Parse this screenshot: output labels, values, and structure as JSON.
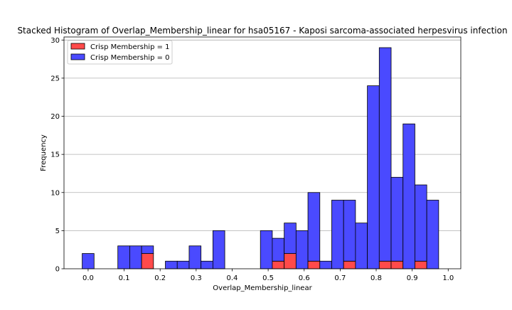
{
  "chart_data": {
    "type": "bar",
    "stacked": true,
    "title": "Stacked Histogram of Overlap_Membership_linear for hsa05167 - Kaposi sarcoma-associated herpesvirus infection",
    "xlabel": "Overlap_Membership_linear",
    "ylabel": "Frequency",
    "xlim": [
      -0.067,
      1.035
    ],
    "ylim": [
      0,
      30.4
    ],
    "xticks": [
      "0.0",
      "0.1",
      "0.2",
      "0.3",
      "0.4",
      "0.5",
      "0.6",
      "0.7",
      "0.8",
      "0.9",
      "1.0"
    ],
    "yticks": [
      "0",
      "5",
      "10",
      "15",
      "20",
      "25",
      "30"
    ],
    "grid": "y",
    "legend_position": "top-left",
    "bin_edges": [
      -0.0165,
      0.0165,
      0.0495,
      0.0825,
      0.1155,
      0.1485,
      0.1815,
      0.2145,
      0.2475,
      0.2805,
      0.3135,
      0.3465,
      0.3795,
      0.4125,
      0.4455,
      0.4785,
      0.5115,
      0.5445,
      0.5775,
      0.6105,
      0.6435,
      0.6765,
      0.7095,
      0.7425,
      0.7755,
      0.8085,
      0.8415,
      0.8745,
      0.9075,
      0.9405,
      0.9735
    ],
    "series": [
      {
        "name": "Crisp Membership = 1",
        "color": "#ff4a4a",
        "values": [
          0,
          0,
          0,
          0,
          0,
          2,
          0,
          0,
          0,
          0,
          0,
          0,
          0,
          0,
          0,
          0,
          1,
          2,
          0,
          1,
          0,
          0,
          1,
          0,
          0,
          1,
          1,
          0,
          1,
          0
        ]
      },
      {
        "name": "Crisp Membership = 0",
        "color": "#4a4aff",
        "values": [
          2,
          0,
          0,
          3,
          3,
          1,
          0,
          1,
          1,
          3,
          1,
          5,
          0,
          0,
          0,
          5,
          3,
          4,
          5,
          9,
          1,
          9,
          8,
          6,
          24,
          28,
          11,
          19,
          10,
          9
        ]
      }
    ]
  }
}
